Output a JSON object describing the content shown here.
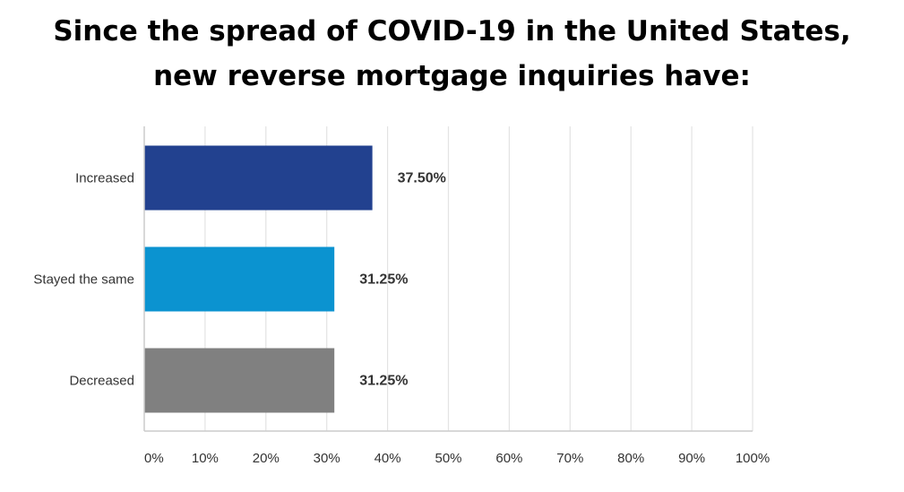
{
  "chart_data": {
    "type": "bar",
    "orientation": "horizontal",
    "title_lines": [
      "Since the spread of COVID-19 in the United States,",
      "new reverse mortgage inquiries have:"
    ],
    "categories": [
      "Increased",
      "Stayed the same",
      "Decreased"
    ],
    "values": [
      37.5,
      31.25,
      31.25
    ],
    "value_labels": [
      "37.50%",
      "31.25%",
      "31.25%"
    ],
    "colors": [
      "#22418f",
      "#0b93d0",
      "#808080"
    ],
    "xlim": [
      0,
      100
    ],
    "x_ticks": [
      0,
      10,
      20,
      30,
      40,
      50,
      60,
      70,
      80,
      90,
      100
    ],
    "x_tick_labels": [
      "0%",
      "10%",
      "20%",
      "30%",
      "40%",
      "50%",
      "60%",
      "70%",
      "80%",
      "90%",
      "100%"
    ],
    "grid": true,
    "legend": "none"
  }
}
